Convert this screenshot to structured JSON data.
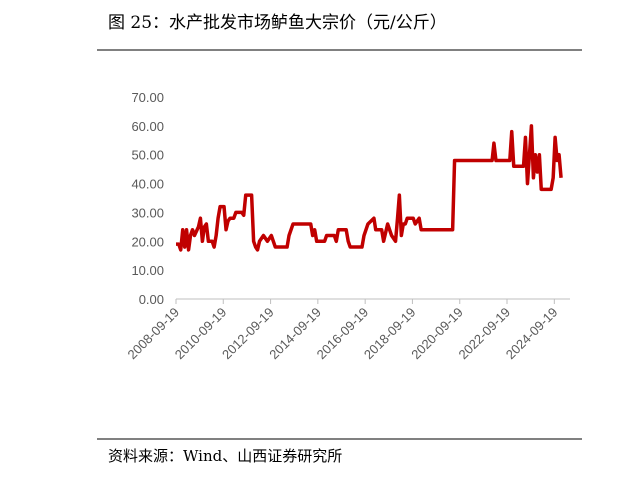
{
  "chart_data": {
    "type": "line",
    "title": "图 25：水产批发市场鲈鱼大宗价（元/公斤）",
    "source": "资料来源：Wind、山西证券研究所",
    "x": [
      "2008-09-19",
      "2008-11-01",
      "2008-12-01",
      "2009-01-01",
      "2009-02-01",
      "2009-03-01",
      "2009-04-01",
      "2009-05-01",
      "2009-06-01",
      "2009-07-01",
      "2009-09-01",
      "2009-10-01",
      "2009-11-01",
      "2009-12-01",
      "2010-01-01",
      "2010-02-01",
      "2010-04-01",
      "2010-05-01",
      "2010-06-01",
      "2010-07-01",
      "2010-08-01",
      "2010-10-01",
      "2010-11-01",
      "2010-12-01",
      "2011-01-01",
      "2011-03-01",
      "2011-04-01",
      "2011-07-01",
      "2011-08-01",
      "2011-09-01",
      "2011-12-01",
      "2012-01-01",
      "2012-02-01",
      "2012-03-01",
      "2012-04-01",
      "2012-06-01",
      "2012-08-01",
      "2012-10-01",
      "2012-12-01",
      "2013-06-01",
      "2013-07-01",
      "2013-09-01",
      "2014-06-01",
      "2014-07-01",
      "2014-08-01",
      "2014-09-01",
      "2015-01-01",
      "2015-02-01",
      "2015-06-01",
      "2015-07-01",
      "2015-08-01",
      "2015-12-01",
      "2016-01-01",
      "2016-02-01",
      "2016-08-01",
      "2016-09-01",
      "2016-11-01",
      "2017-02-01",
      "2017-03-01",
      "2017-06-01",
      "2017-07-01",
      "2017-09-01",
      "2017-11-01",
      "2018-01-01",
      "2018-02-01",
      "2018-03-01",
      "2018-04-01",
      "2018-05-01",
      "2018-06-01",
      "2018-07-01",
      "2018-10-01",
      "2018-11-01",
      "2019-01-01",
      "2019-02-01",
      "2020-06-01",
      "2020-07-01",
      "2022-02-01",
      "2022-03-01",
      "2022-04-01",
      "2022-11-01",
      "2022-12-01",
      "2023-01-01",
      "2023-06-01",
      "2023-07-01",
      "2023-08-01",
      "2023-09-01",
      "2023-10-01",
      "2023-11-01",
      "2023-12-01",
      "2024-01-01",
      "2024-02-01",
      "2024-03-01",
      "2024-08-01",
      "2024-09-01",
      "2024-10-01",
      "2024-11-01",
      "2024-12-01",
      "2025-01-01"
    ],
    "values": [
      19,
      19,
      17,
      24,
      18,
      24,
      17,
      22,
      24,
      22,
      25,
      28,
      20,
      25,
      26,
      20,
      20,
      18,
      22,
      28,
      32,
      32,
      24,
      27,
      28,
      28,
      30,
      30,
      29,
      36,
      36,
      20,
      18,
      17,
      20,
      22,
      20,
      22,
      18,
      18,
      22,
      26,
      26,
      22,
      24,
      20,
      20,
      22,
      22,
      20,
      24,
      24,
      20,
      18,
      18,
      22,
      26,
      28,
      24,
      24,
      20,
      26,
      22,
      20,
      28,
      36,
      22,
      26,
      26,
      28,
      28,
      26,
      28,
      24,
      24,
      48,
      48,
      54,
      48,
      48,
      58,
      46,
      46,
      56,
      40,
      50,
      60,
      42,
      50,
      44,
      50,
      38,
      38,
      42,
      56,
      48,
      50,
      42
    ],
    "color": "#c00000",
    "xlim": [
      "2008-09-19",
      "2025-05-19"
    ],
    "xticks": [
      "2008-09-19",
      "2010-09-19",
      "2012-09-19",
      "2014-09-19",
      "2016-09-19",
      "2018-09-19",
      "2020-09-19",
      "2022-09-19",
      "2024-09-19"
    ],
    "ylim": [
      0,
      70
    ],
    "yticks": [
      {
        "value": 0,
        "label": "0.00"
      },
      {
        "value": 10,
        "label": "10.00"
      },
      {
        "value": 20,
        "label": "20.00"
      },
      {
        "value": 30,
        "label": "30.00"
      },
      {
        "value": 40,
        "label": "40.00"
      },
      {
        "value": 50,
        "label": "50.00"
      },
      {
        "value": 60,
        "label": "60.00"
      },
      {
        "value": 70,
        "label": "70.00"
      }
    ],
    "grid": false
  }
}
